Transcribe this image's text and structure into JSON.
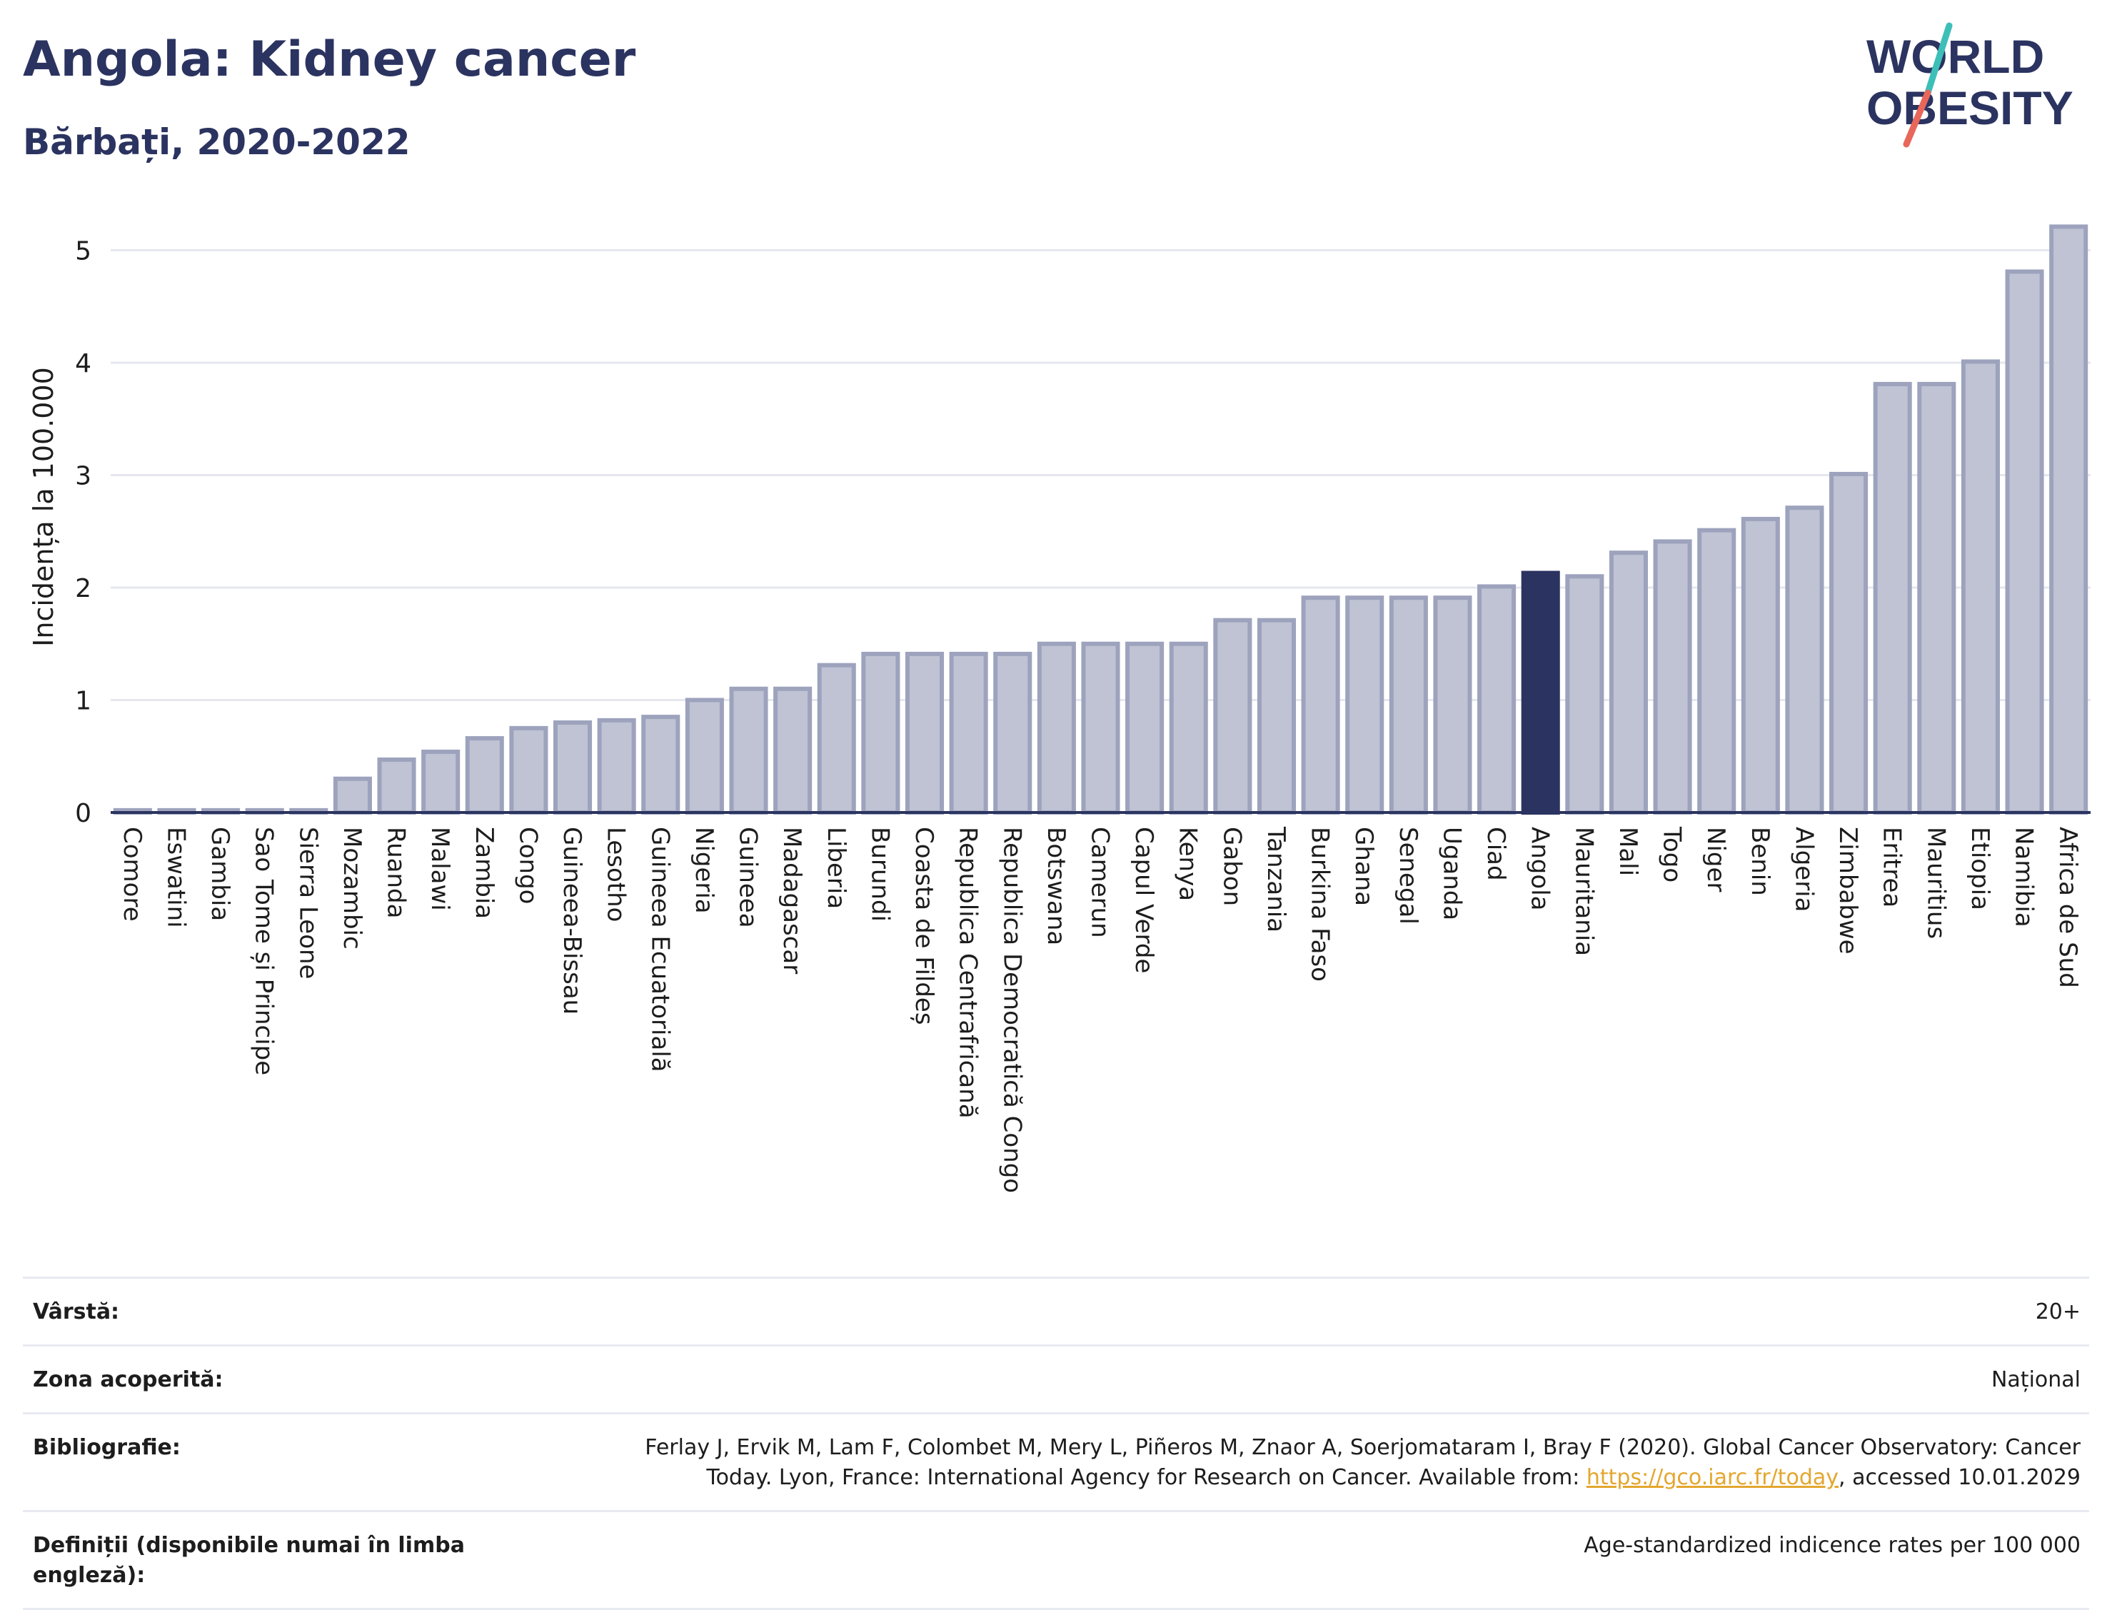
{
  "header": {
    "title": "Angola: Kidney cancer",
    "subtitle": "Bărbați, 2020-2022"
  },
  "logo": {
    "line1": "WORLD",
    "line2": "OBESITY",
    "accent_teal": "#3dbfb8",
    "accent_red": "#e8675b"
  },
  "colors": {
    "bar_fill": "#bfc3d3",
    "bar_stroke": "#9da3bd",
    "highlight": "#2b3360",
    "grid": "#e6e7ee",
    "axis": "#2b3360"
  },
  "chart_data": {
    "type": "bar",
    "title": "Angola: Kidney cancer",
    "subtitle": "Bărbați, 2020-2022",
    "xlabel": "",
    "ylabel": "Incidența la 100.000",
    "ylim": [
      0,
      5.3
    ],
    "yticks": [
      0,
      1,
      2,
      3,
      4,
      5
    ],
    "grid": true,
    "highlight": "Angola",
    "categories": [
      "Comore",
      "Eswatini",
      "Gambia",
      "Sao Tome și Principe",
      "Sierra Leone",
      "Mozambic",
      "Ruanda",
      "Malawi",
      "Zambia",
      "Congo",
      "Guineea-Bissau",
      "Lesotho",
      "Guineea Ecuatorială",
      "Nigeria",
      "Guineea",
      "Madagascar",
      "Liberia",
      "Burundi",
      "Coasta de Fildeș",
      "Republica Centrafricană",
      "Republica Democratică Congo",
      "Botswana",
      "Camerun",
      "Capul Verde",
      "Kenya",
      "Gabon",
      "Tanzania",
      "Burkina Faso",
      "Ghana",
      "Senegal",
      "Uganda",
      "Ciad",
      "Angola",
      "Mauritania",
      "Mali",
      "Togo",
      "Niger",
      "Benin",
      "Algeria",
      "Zimbabwe",
      "Eritrea",
      "Mauritius",
      "Etiopia",
      "Namibia",
      "Africa de Sud"
    ],
    "values": [
      0.02,
      0.02,
      0.02,
      0.02,
      0.02,
      0.3,
      0.47,
      0.54,
      0.66,
      0.75,
      0.8,
      0.82,
      0.85,
      1.0,
      1.1,
      1.1,
      1.31,
      1.41,
      1.41,
      1.41,
      1.41,
      1.5,
      1.5,
      1.5,
      1.5,
      1.71,
      1.71,
      1.91,
      1.91,
      1.91,
      1.91,
      2.01,
      2.13,
      2.1,
      2.31,
      2.41,
      2.51,
      2.61,
      2.71,
      3.01,
      3.81,
      3.81,
      4.01,
      4.81,
      5.21
    ]
  },
  "meta": {
    "rows": [
      {
        "label": "Vârstă:",
        "value": "20+"
      },
      {
        "label": "Zona acoperită:",
        "value": "Național"
      },
      {
        "label": "Bibliografie:",
        "value_before": "Ferlay J, Ervik M, Lam F, Colombet M, Mery L, Piñeros M, Znaor A, Soerjomataram I, Bray F (2020). Global Cancer Observatory: Cancer Today. Lyon, France: International Agency for Research on Cancer. Available from: ",
        "link": "https://gco.iarc.fr/today",
        "value_after": ", accessed 10.01.2029"
      },
      {
        "label": "Definiții (disponibile numai în limba engleză):",
        "value": "Age-standardized indicence rates per 100 000"
      }
    ]
  }
}
